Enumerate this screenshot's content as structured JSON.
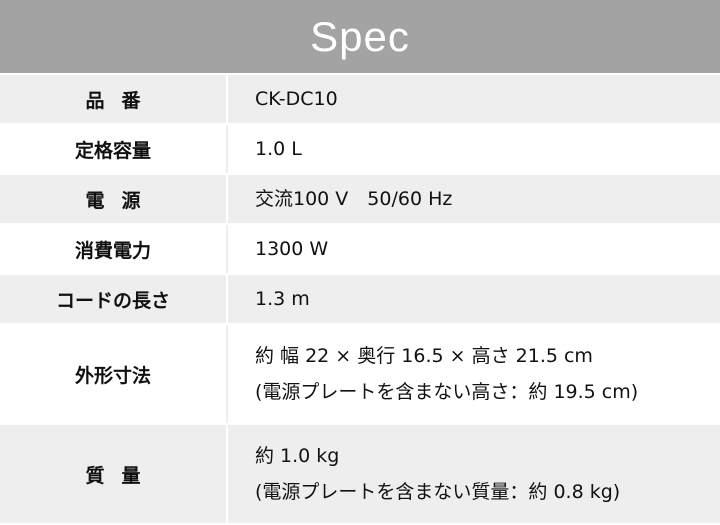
{
  "title": "Spec",
  "rows": [
    {
      "label": "品番",
      "values": [
        "CK-DC10"
      ]
    },
    {
      "label": "定格容量",
      "values": [
        "1.0 L"
      ]
    },
    {
      "label": "電源",
      "values": [
        "交流100 V　50/60 Hz"
      ]
    },
    {
      "label": "消費電力",
      "values": [
        "1300 W"
      ]
    },
    {
      "label": "コードの長さ",
      "values": [
        "1.3 m"
      ]
    },
    {
      "label": "外形寸法",
      "values": [
        "約 幅 22 × 奥行 16.5 × 高さ 21.5 cm",
        "(電源プレートを含まない高さ：約 19.5 cm)"
      ]
    },
    {
      "label": "質量",
      "values": [
        "約 1.0 kg",
        "(電源プレートを含まない質量：約 0.8 kg)"
      ]
    }
  ]
}
